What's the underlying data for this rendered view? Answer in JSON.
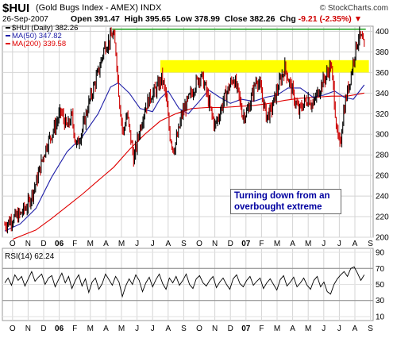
{
  "header": {
    "symbol": "$HUI",
    "name": "(Gold Bugs Index - AMEX)  INDX",
    "date": "26-Sep-2007",
    "open_label": "Open",
    "open": "391.47",
    "high_label": "High",
    "high": "395.65",
    "low_label": "Low",
    "low": "378.99",
    "close_label": "Close",
    "close": "382.26",
    "chg_label": "Chg",
    "chg": "-9.21 (-2.35%)",
    "chg_symbol": "▼",
    "credit": "© StockCharts.com"
  },
  "chart_data": [
    {
      "type": "candlestick",
      "panel": "price",
      "legend": [
        {
          "label": "$HUI (Daily) 382.26",
          "color": "#000000"
        },
        {
          "label": "MA(50) 347.82",
          "color": "#1f1fa8"
        },
        {
          "label": "MA(200) 339.58",
          "color": "#e00000"
        }
      ],
      "ylim": [
        200,
        405
      ],
      "yticks": [
        200,
        220,
        240,
        260,
        280,
        300,
        320,
        340,
        360,
        380,
        400
      ],
      "xlabels": [
        "O",
        "N",
        "D",
        "06",
        "F",
        "M",
        "A",
        "M",
        "J",
        "J",
        "A",
        "S",
        "O",
        "N",
        "D",
        "07",
        "F",
        "M",
        "A",
        "M",
        "J",
        "J",
        "A",
        "S"
      ],
      "bold_xlabels": [
        "06",
        "07"
      ],
      "grid": true,
      "close_series": [
        {
          "m": 0.0,
          "v": 212
        },
        {
          "m": 0.5,
          "v": 218
        },
        {
          "m": 1.0,
          "v": 222
        },
        {
          "m": 1.5,
          "v": 232
        },
        {
          "m": 2.0,
          "v": 252
        },
        {
          "m": 2.4,
          "v": 275
        },
        {
          "m": 2.7,
          "v": 290
        },
        {
          "m": 3.0,
          "v": 300
        },
        {
          "m": 3.3,
          "v": 310
        },
        {
          "m": 3.6,
          "v": 322
        },
        {
          "m": 4.0,
          "v": 306
        },
        {
          "m": 4.3,
          "v": 318
        },
        {
          "m": 4.6,
          "v": 288
        },
        {
          "m": 5.0,
          "v": 305
        },
        {
          "m": 5.4,
          "v": 330
        },
        {
          "m": 5.8,
          "v": 350
        },
        {
          "m": 6.1,
          "v": 365
        },
        {
          "m": 6.4,
          "v": 385
        },
        {
          "m": 6.7,
          "v": 390
        },
        {
          "m": 6.95,
          "v": 398
        },
        {
          "m": 7.15,
          "v": 380
        },
        {
          "m": 7.35,
          "v": 335
        },
        {
          "m": 7.6,
          "v": 300
        },
        {
          "m": 7.85,
          "v": 320
        },
        {
          "m": 8.1,
          "v": 295
        },
        {
          "m": 8.3,
          "v": 275
        },
        {
          "m": 8.6,
          "v": 300
        },
        {
          "m": 9.0,
          "v": 325
        },
        {
          "m": 9.4,
          "v": 338
        },
        {
          "m": 9.8,
          "v": 345
        },
        {
          "m": 10.1,
          "v": 355
        },
        {
          "m": 10.35,
          "v": 338
        },
        {
          "m": 10.6,
          "v": 300
        },
        {
          "m": 10.85,
          "v": 285
        },
        {
          "m": 11.1,
          "v": 298
        },
        {
          "m": 11.4,
          "v": 320
        },
        {
          "m": 11.7,
          "v": 330
        },
        {
          "m": 12.0,
          "v": 340
        },
        {
          "m": 12.3,
          "v": 350
        },
        {
          "m": 12.6,
          "v": 358
        },
        {
          "m": 12.9,
          "v": 345
        },
        {
          "m": 13.2,
          "v": 325
        },
        {
          "m": 13.5,
          "v": 308
        },
        {
          "m": 13.8,
          "v": 320
        },
        {
          "m": 14.1,
          "v": 335
        },
        {
          "m": 14.4,
          "v": 345
        },
        {
          "m": 14.7,
          "v": 355
        },
        {
          "m": 15.0,
          "v": 340
        },
        {
          "m": 15.3,
          "v": 318
        },
        {
          "m": 15.6,
          "v": 322
        },
        {
          "m": 15.9,
          "v": 338
        },
        {
          "m": 16.2,
          "v": 355
        },
        {
          "m": 16.5,
          "v": 340
        },
        {
          "m": 16.8,
          "v": 318
        },
        {
          "m": 17.1,
          "v": 322
        },
        {
          "m": 17.4,
          "v": 338
        },
        {
          "m": 17.7,
          "v": 352
        },
        {
          "m": 18.0,
          "v": 365
        },
        {
          "m": 18.3,
          "v": 350
        },
        {
          "m": 18.6,
          "v": 335
        },
        {
          "m": 18.9,
          "v": 322
        },
        {
          "m": 19.2,
          "v": 330
        },
        {
          "m": 19.5,
          "v": 335
        },
        {
          "m": 19.8,
          "v": 328
        },
        {
          "m": 20.1,
          "v": 340
        },
        {
          "m": 20.4,
          "v": 350
        },
        {
          "m": 20.7,
          "v": 358
        },
        {
          "m": 20.95,
          "v": 368
        },
        {
          "m": 21.15,
          "v": 340
        },
        {
          "m": 21.35,
          "v": 300
        },
        {
          "m": 21.55,
          "v": 288
        },
        {
          "m": 21.75,
          "v": 320
        },
        {
          "m": 22.0,
          "v": 340
        },
        {
          "m": 22.25,
          "v": 358
        },
        {
          "m": 22.5,
          "v": 380
        },
        {
          "m": 22.75,
          "v": 395
        },
        {
          "m": 22.95,
          "v": 392
        },
        {
          "m": 23.1,
          "v": 382
        }
      ],
      "ma50": [
        {
          "m": 0.0,
          "v": 206
        },
        {
          "m": 1.0,
          "v": 213
        },
        {
          "m": 2.0,
          "v": 228
        },
        {
          "m": 3.0,
          "v": 258
        },
        {
          "m": 4.0,
          "v": 283
        },
        {
          "m": 5.0,
          "v": 298
        },
        {
          "m": 6.0,
          "v": 320
        },
        {
          "m": 6.8,
          "v": 346
        },
        {
          "m": 7.3,
          "v": 350
        },
        {
          "m": 8.0,
          "v": 340
        },
        {
          "m": 8.7,
          "v": 325
        },
        {
          "m": 9.5,
          "v": 322
        },
        {
          "m": 10.0,
          "v": 335
        },
        {
          "m": 10.5,
          "v": 342
        },
        {
          "m": 11.2,
          "v": 325
        },
        {
          "m": 11.8,
          "v": 320
        },
        {
          "m": 12.5,
          "v": 332
        },
        {
          "m": 13.1,
          "v": 343
        },
        {
          "m": 13.8,
          "v": 336
        },
        {
          "m": 14.5,
          "v": 330
        },
        {
          "m": 15.2,
          "v": 334
        },
        {
          "m": 16.0,
          "v": 332
        },
        {
          "m": 16.8,
          "v": 336
        },
        {
          "m": 17.5,
          "v": 338
        },
        {
          "m": 18.2,
          "v": 345
        },
        {
          "m": 19.0,
          "v": 345
        },
        {
          "m": 19.8,
          "v": 336
        },
        {
          "m": 20.5,
          "v": 338
        },
        {
          "m": 21.2,
          "v": 342
        },
        {
          "m": 21.8,
          "v": 336
        },
        {
          "m": 22.4,
          "v": 334
        },
        {
          "m": 23.1,
          "v": 348
        }
      ],
      "ma200": [
        {
          "m": 0.5,
          "v": 198
        },
        {
          "m": 2.0,
          "v": 207
        },
        {
          "m": 3.0,
          "v": 218
        },
        {
          "m": 4.0,
          "v": 230
        },
        {
          "m": 5.0,
          "v": 242
        },
        {
          "m": 6.0,
          "v": 255
        },
        {
          "m": 7.0,
          "v": 268
        },
        {
          "m": 8.0,
          "v": 285
        },
        {
          "m": 9.0,
          "v": 300
        },
        {
          "m": 10.0,
          "v": 313
        },
        {
          "m": 11.0,
          "v": 320
        },
        {
          "m": 12.0,
          "v": 325
        },
        {
          "m": 13.0,
          "v": 326
        },
        {
          "m": 14.0,
          "v": 326
        },
        {
          "m": 15.0,
          "v": 327
        },
        {
          "m": 16.0,
          "v": 328
        },
        {
          "m": 17.0,
          "v": 330
        },
        {
          "m": 18.0,
          "v": 333
        },
        {
          "m": 19.0,
          "v": 335
        },
        {
          "m": 20.0,
          "v": 336
        },
        {
          "m": 21.0,
          "v": 337
        },
        {
          "m": 22.0,
          "v": 337
        },
        {
          "m": 23.1,
          "v": 340
        }
      ],
      "resistance_band": [
        360,
        372
      ],
      "peak_line": 402,
      "annotation": "Turning down from an overbought extreme"
    },
    {
      "type": "line",
      "panel": "indicator",
      "label": "RSI(14) 62.24",
      "ylim": [
        5,
        95
      ],
      "yticks": [
        10,
        30,
        50,
        70,
        90
      ],
      "reference_lines": [
        30,
        70
      ],
      "series": [
        {
          "name": "RSI(14)",
          "values": [
            52,
            58,
            49,
            62,
            55,
            60,
            48,
            57,
            66,
            54,
            59,
            63,
            50,
            58,
            61,
            47,
            56,
            64,
            52,
            60,
            45,
            55,
            62,
            48,
            57,
            40,
            53,
            58,
            44,
            51,
            63,
            56,
            49,
            60,
            53,
            35,
            48,
            57,
            50,
            62,
            55,
            41,
            52,
            59,
            47,
            56,
            63,
            51,
            44,
            58,
            52,
            60,
            49,
            55,
            63,
            50,
            45,
            57,
            61,
            52,
            48,
            55,
            60,
            46,
            53,
            58,
            50,
            44,
            57,
            62,
            51,
            47,
            55,
            60,
            49,
            54,
            58,
            45,
            52,
            57,
            50,
            43,
            56,
            61,
            48,
            53,
            59,
            47,
            52,
            58,
            49,
            44,
            55,
            60,
            47,
            53,
            41,
            38,
            50,
            57,
            62,
            66,
            60,
            70,
            72,
            64,
            55,
            62
          ]
        }
      ]
    }
  ]
}
